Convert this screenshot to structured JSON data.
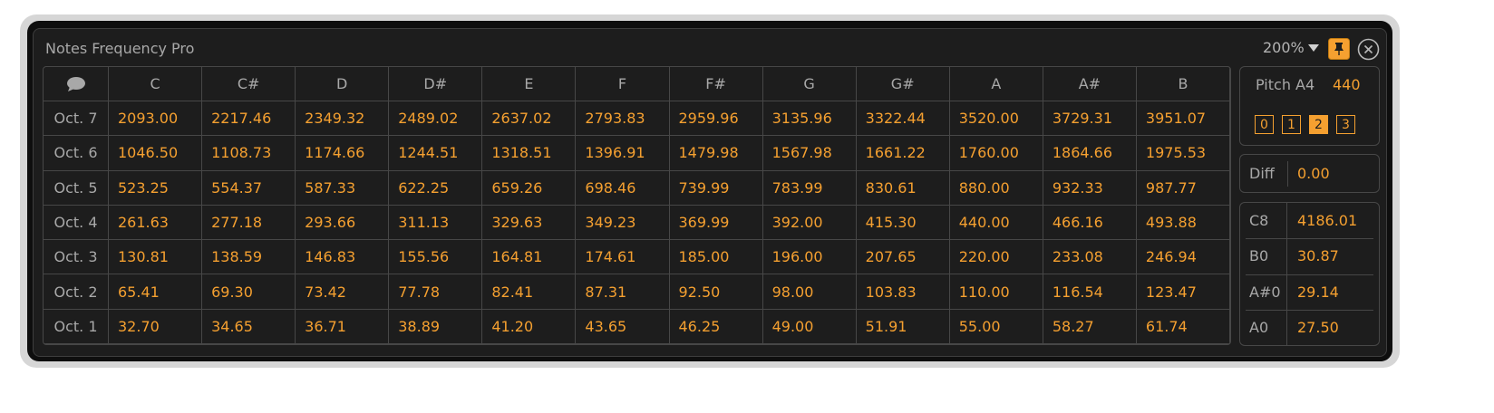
{
  "title": "Notes Frequency Pro",
  "zoom": "200%",
  "table": {
    "header": [
      "C",
      "C#",
      "D",
      "D#",
      "E",
      "F",
      "F#",
      "G",
      "G#",
      "A",
      "A#",
      "B"
    ],
    "rows": [
      {
        "label": "Oct. 7",
        "values": [
          "2093.00",
          "2217.46",
          "2349.32",
          "2489.02",
          "2637.02",
          "2793.83",
          "2959.96",
          "3135.96",
          "3322.44",
          "3520.00",
          "3729.31",
          "3951.07"
        ]
      },
      {
        "label": "Oct. 6",
        "values": [
          "1046.50",
          "1108.73",
          "1174.66",
          "1244.51",
          "1318.51",
          "1396.91",
          "1479.98",
          "1567.98",
          "1661.22",
          "1760.00",
          "1864.66",
          "1975.53"
        ]
      },
      {
        "label": "Oct. 5",
        "values": [
          "523.25",
          "554.37",
          "587.33",
          "622.25",
          "659.26",
          "698.46",
          "739.99",
          "783.99",
          "830.61",
          "880.00",
          "932.33",
          "987.77"
        ]
      },
      {
        "label": "Oct. 4",
        "values": [
          "261.63",
          "277.18",
          "293.66",
          "311.13",
          "329.63",
          "349.23",
          "369.99",
          "392.00",
          "415.30",
          "440.00",
          "466.16",
          "493.88"
        ]
      },
      {
        "label": "Oct. 3",
        "values": [
          "130.81",
          "138.59",
          "146.83",
          "155.56",
          "164.81",
          "174.61",
          "185.00",
          "196.00",
          "207.65",
          "220.00",
          "233.08",
          "246.94"
        ]
      },
      {
        "label": "Oct. 2",
        "values": [
          "65.41",
          "69.30",
          "73.42",
          "77.78",
          "82.41",
          "87.31",
          "92.50",
          "98.00",
          "103.83",
          "110.00",
          "116.54",
          "123.47"
        ]
      },
      {
        "label": "Oct. 1",
        "values": [
          "32.70",
          "34.65",
          "36.71",
          "38.89",
          "41.20",
          "43.65",
          "46.25",
          "49.00",
          "51.91",
          "55.00",
          "58.27",
          "61.74"
        ]
      }
    ]
  },
  "pitch": {
    "label": "Pitch A4",
    "value": "440",
    "octaves": [
      "0",
      "1",
      "2",
      "3"
    ],
    "active": 2
  },
  "diff": {
    "label": "Diff",
    "value": "0.00"
  },
  "extremes": [
    {
      "note": "C8",
      "freq": "4186.01"
    },
    {
      "note": "B0",
      "freq": "30.87"
    },
    {
      "note": "A#0",
      "freq": "29.14"
    },
    {
      "note": "A0",
      "freq": "27.50"
    }
  ]
}
